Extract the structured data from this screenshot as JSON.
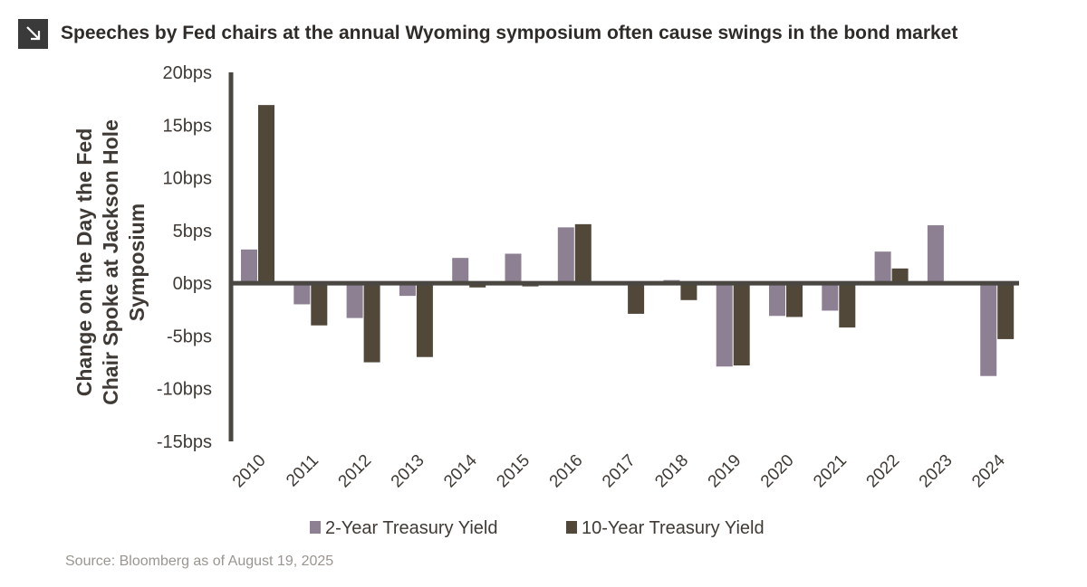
{
  "header": {
    "title": "Speeches by Fed chairs at the annual Wyoming symposium often cause swings in the bond market",
    "icon": "arrow-down-right-icon"
  },
  "footer": {
    "source": "Source: Bloomberg as of August 19, 2025"
  },
  "colors": {
    "series_2yr": "#8d8092",
    "series_10yr": "#514839",
    "axis": "#4a4743",
    "text": "#3f3a35",
    "badge": "#3a3a3a"
  },
  "chart_data": {
    "type": "bar",
    "title": "Speeches by Fed chairs at the annual Wyoming symposium often cause swings in the bond market",
    "ylabel": "Change on the Day the Fed Chair Spoke at Jackson Hole Symposium",
    "xlabel": "",
    "ylim": [
      -15,
      20
    ],
    "yticks": [
      20,
      15,
      10,
      5,
      0,
      -5,
      -10,
      -15
    ],
    "ytick_labels": [
      "20bps",
      "15bps",
      "10bps",
      "5bps",
      "0bps",
      "-5bps",
      "-10bps",
      "-15bps"
    ],
    "categories": [
      "2010",
      "2011",
      "2012",
      "2013",
      "2014",
      "2015",
      "2016",
      "2017",
      "2018",
      "2019",
      "2020",
      "2021",
      "2022",
      "2023",
      "2024"
    ],
    "series": [
      {
        "name": "2-Year Treasury Yield",
        "values": [
          3.2,
          -2.0,
          -3.3,
          -1.2,
          2.4,
          2.8,
          5.3,
          0.0,
          0.3,
          -7.9,
          -3.1,
          -2.6,
          3.0,
          5.5,
          -8.8
        ]
      },
      {
        "name": "10-Year Treasury Yield",
        "values": [
          16.9,
          -4.0,
          -7.5,
          -7.0,
          -0.4,
          -0.3,
          5.6,
          -2.9,
          -1.6,
          -7.8,
          -3.2,
          -4.2,
          1.4,
          0.0,
          -5.3
        ]
      }
    ],
    "legend_position": "bottom",
    "grid": false
  }
}
